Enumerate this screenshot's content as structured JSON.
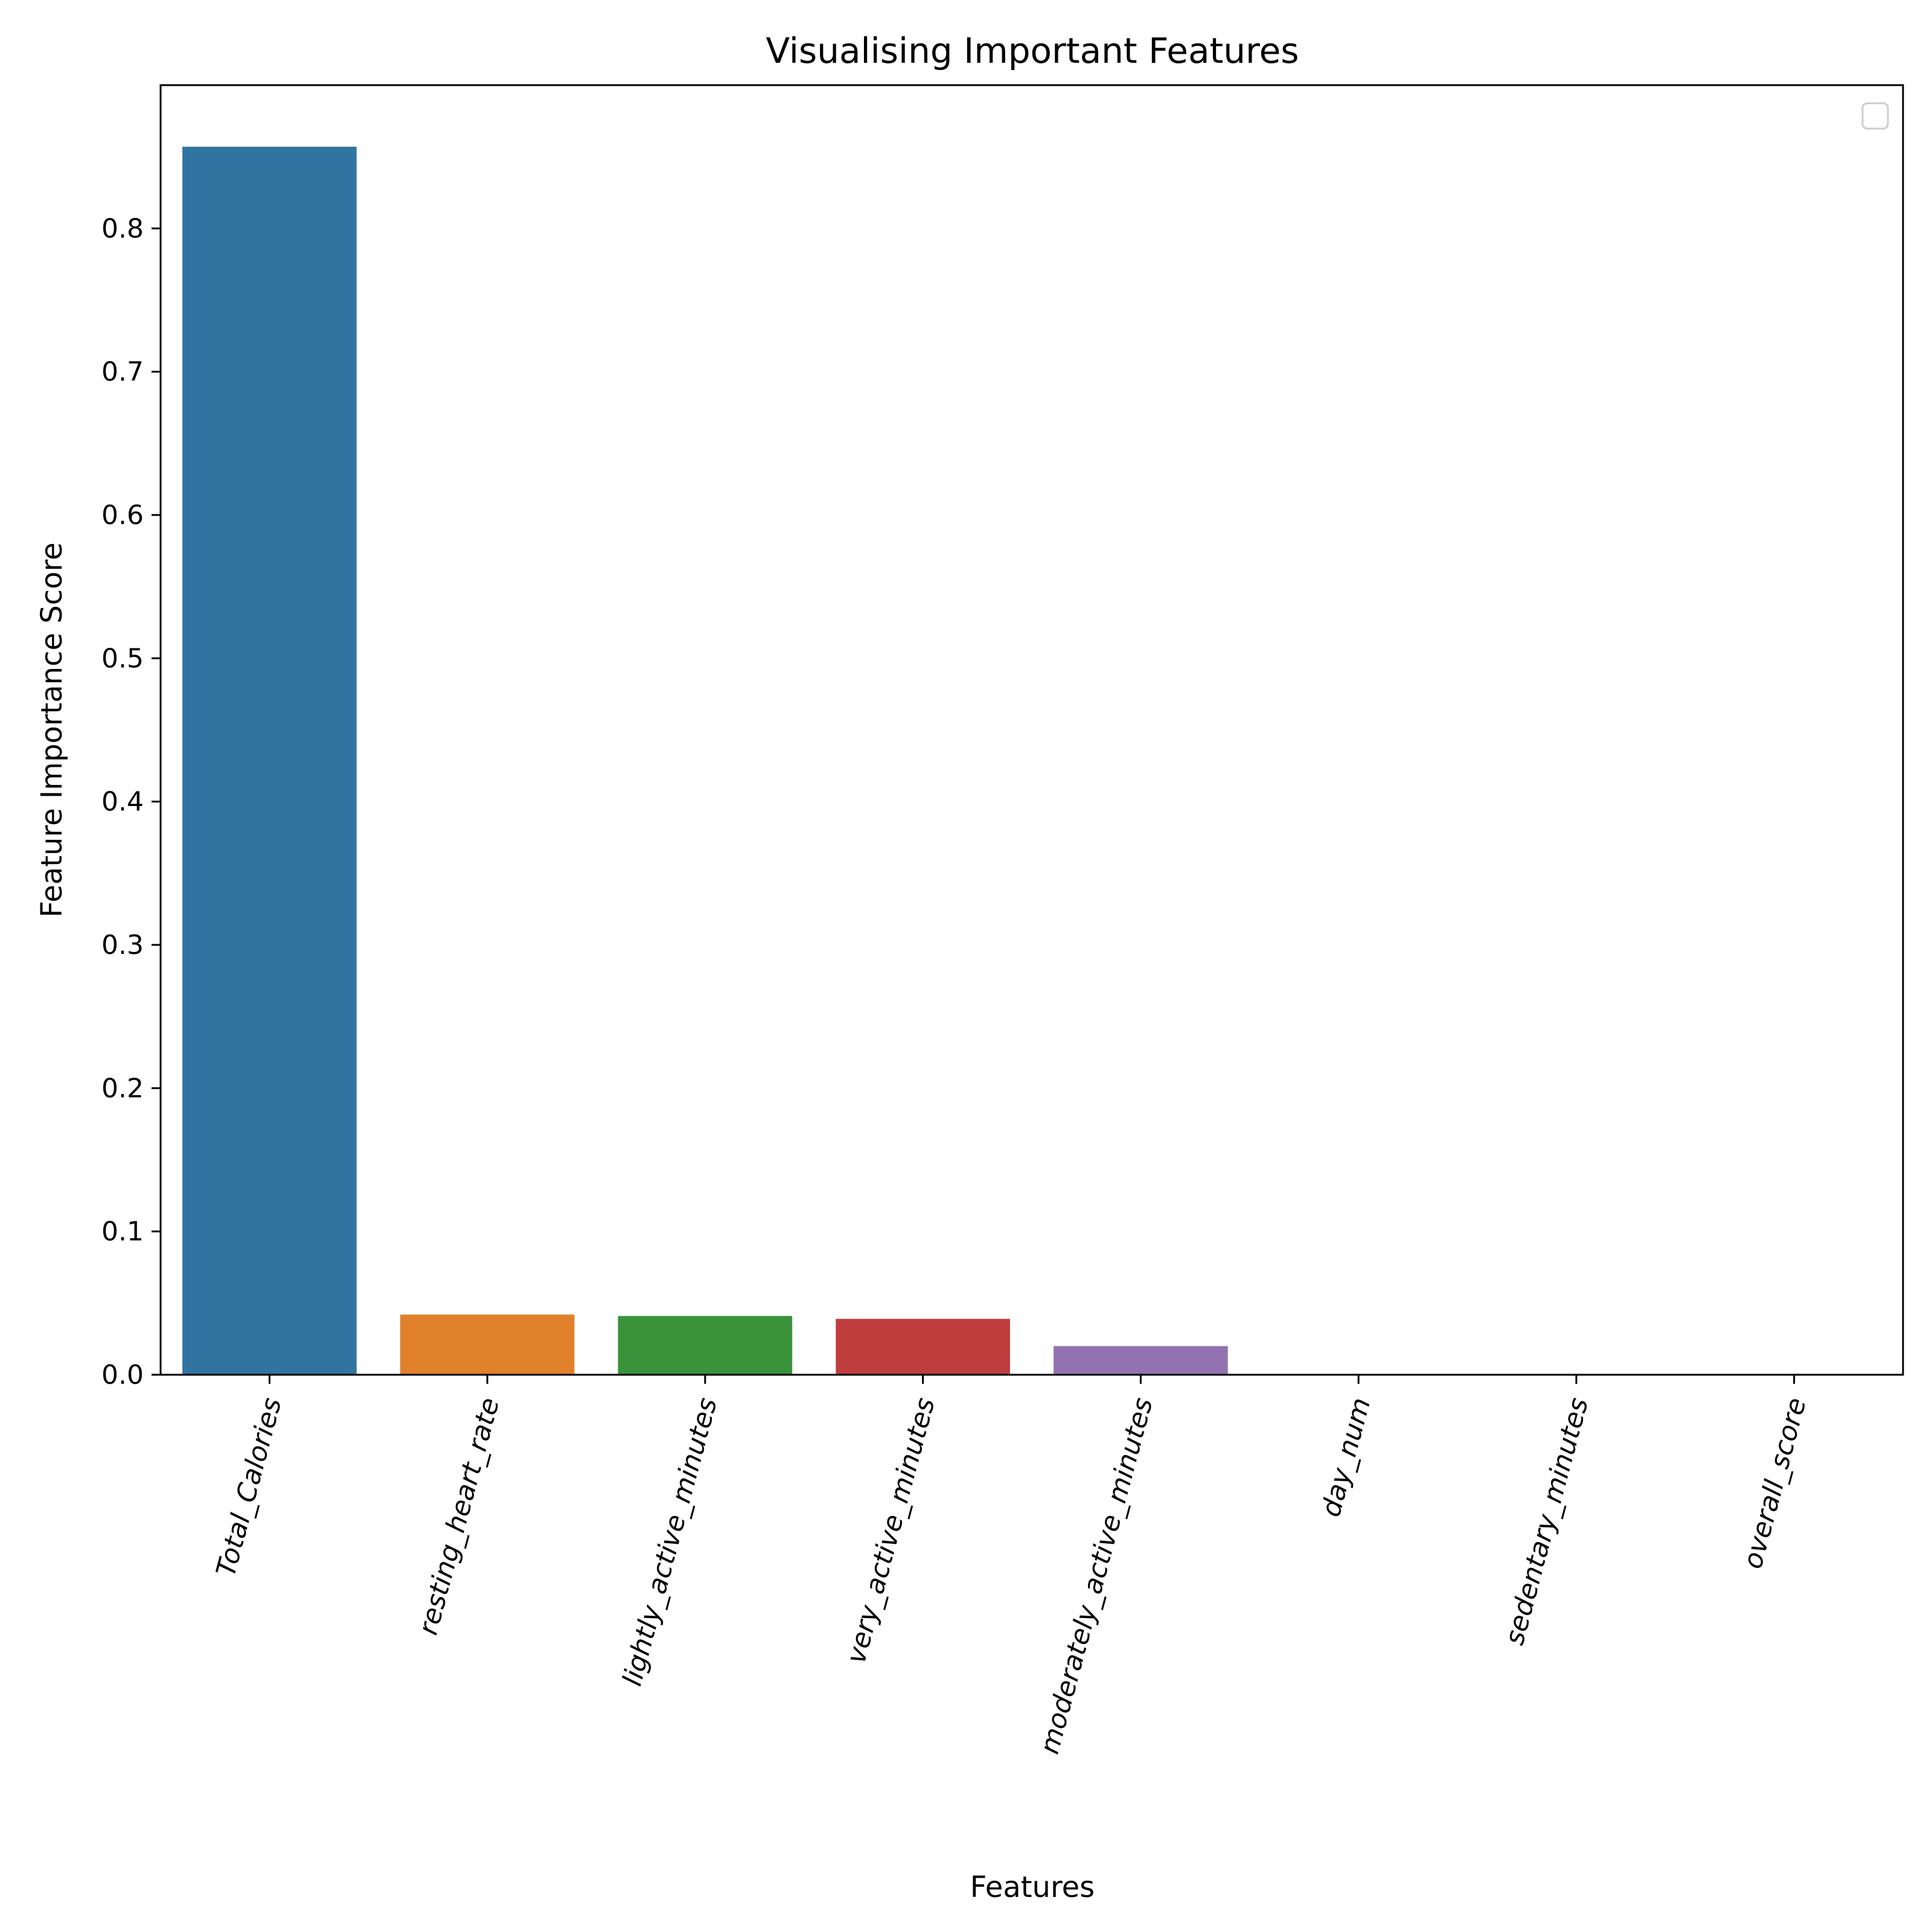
{
  "chart_data": {
    "type": "bar",
    "title": "Visualising Important Features",
    "xlabel": "Features",
    "ylabel": "Feature Importance Score",
    "categories": [
      "Total_Calories",
      "resting_heart_rate",
      "lightly_active_minutes",
      "very_active_minutes",
      "moderately_active_minutes",
      "day_num",
      "sedentary_minutes",
      "overall_score"
    ],
    "values": [
      0.857,
      0.042,
      0.041,
      0.039,
      0.02,
      0.0,
      0.0,
      0.0
    ],
    "colors": [
      "#3274a1",
      "#e1812c",
      "#3a923a",
      "#c03d3e",
      "#9372b2",
      "#845b53",
      "#d684bd",
      "#7f7f7f"
    ],
    "ylim": [
      0,
      0.9
    ],
    "yticks": [
      0.0,
      0.1,
      0.2,
      0.3,
      0.4,
      0.5,
      0.6,
      0.7,
      0.8
    ],
    "ytick_labels": [
      "0.0",
      "0.1",
      "0.2",
      "0.3",
      "0.4",
      "0.5",
      "0.6",
      "0.7",
      "0.8"
    ],
    "xtick_rotation_deg": -75,
    "grid": false,
    "legend": {
      "placement": "top-right",
      "entries": []
    }
  }
}
